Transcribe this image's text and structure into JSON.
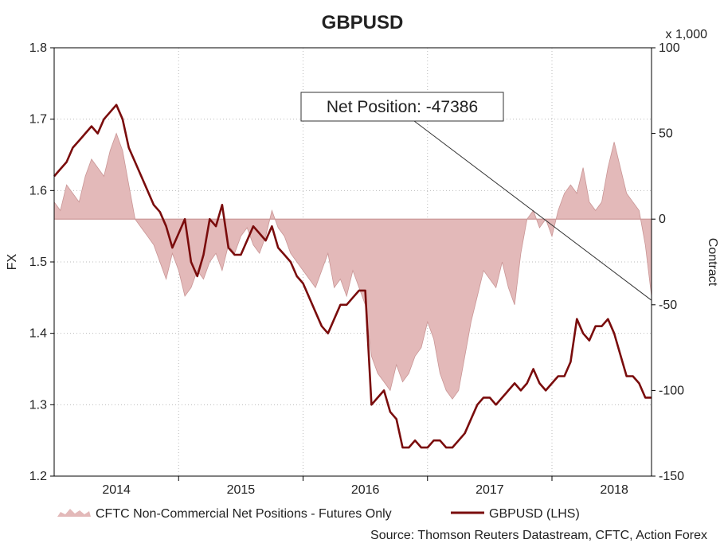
{
  "chart_data": {
    "type": "line",
    "title": "GBPUSD",
    "ylabel": "FX",
    "y2label": "Contract",
    "y2_multiplier_label": "x 1,000",
    "ylim": [
      1.2,
      1.8
    ],
    "y2lim": [
      -150,
      100
    ],
    "yticks": [
      "1.2",
      "1.3",
      "1.4",
      "1.5",
      "1.6",
      "1.7",
      "1.8"
    ],
    "y2ticks": [
      "-150",
      "-100",
      "-50",
      "0",
      "50",
      "100"
    ],
    "xlim": [
      2013.5,
      2018.3
    ],
    "xticks": [
      {
        "label": "2014",
        "x": 2014.0
      },
      {
        "label": "2015",
        "x": 2015.0
      },
      {
        "label": "2016",
        "x": 2016.0
      },
      {
        "label": "2017",
        "x": 2017.0
      },
      {
        "label": "2018",
        "x": 2018.0
      }
    ],
    "year_gridlines": [
      2014.5,
      2015.5,
      2016.5,
      2017.5
    ],
    "grid": true,
    "annotation": {
      "label": "Net Position: -47386",
      "target_x": 2018.3,
      "target_y2": -47.386
    },
    "series": [
      {
        "name": "CFTC Non-Commercial Net Positions - Futures Only",
        "type": "area",
        "axis": "right",
        "color": "#e3b9b9",
        "edge_color": "#c99595",
        "x": [
          2013.5,
          2013.55,
          2013.6,
          2013.65,
          2013.7,
          2013.75,
          2013.8,
          2013.85,
          2013.9,
          2013.95,
          2014.0,
          2014.05,
          2014.1,
          2014.15,
          2014.2,
          2014.25,
          2014.3,
          2014.35,
          2014.4,
          2014.45,
          2014.5,
          2014.55,
          2014.6,
          2014.65,
          2014.7,
          2014.75,
          2014.8,
          2014.85,
          2014.9,
          2014.95,
          2015.0,
          2015.05,
          2015.1,
          2015.15,
          2015.2,
          2015.25,
          2015.3,
          2015.35,
          2015.4,
          2015.45,
          2015.5,
          2015.55,
          2015.6,
          2015.65,
          2015.7,
          2015.75,
          2015.8,
          2015.85,
          2015.9,
          2015.95,
          2016.0,
          2016.05,
          2016.1,
          2016.15,
          2016.2,
          2016.25,
          2016.3,
          2016.35,
          2016.4,
          2016.45,
          2016.5,
          2016.55,
          2016.6,
          2016.65,
          2016.7,
          2016.75,
          2016.8,
          2016.85,
          2016.9,
          2016.95,
          2017.0,
          2017.05,
          2017.1,
          2017.15,
          2017.2,
          2017.25,
          2017.3,
          2017.35,
          2017.4,
          2017.45,
          2017.5,
          2017.55,
          2017.6,
          2017.65,
          2017.7,
          2017.75,
          2017.8,
          2017.85,
          2017.9,
          2017.95,
          2018.0,
          2018.05,
          2018.1,
          2018.15,
          2018.2,
          2018.25,
          2018.3
        ],
        "values": [
          10,
          5,
          20,
          15,
          10,
          25,
          35,
          30,
          25,
          40,
          50,
          40,
          20,
          0,
          -5,
          -10,
          -15,
          -25,
          -35,
          -20,
          -30,
          -45,
          -40,
          -30,
          -35,
          -25,
          -20,
          -30,
          -15,
          -20,
          -10,
          -5,
          -15,
          -20,
          -10,
          5,
          -5,
          -10,
          -20,
          -25,
          -30,
          -35,
          -40,
          -30,
          -20,
          -40,
          -35,
          -45,
          -30,
          -40,
          -50,
          -80,
          -90,
          -95,
          -100,
          -85,
          -95,
          -90,
          -80,
          -75,
          -60,
          -70,
          -90,
          -100,
          -105,
          -100,
          -80,
          -60,
          -45,
          -30,
          -35,
          -40,
          -25,
          -40,
          -50,
          -20,
          0,
          5,
          -5,
          0,
          -10,
          5,
          15,
          20,
          15,
          30,
          10,
          5,
          10,
          30,
          45,
          30,
          15,
          10,
          5,
          -15,
          -45
        ]
      },
      {
        "name": "GBPUSD (LHS)",
        "type": "line",
        "axis": "left",
        "color": "#7a0c0c",
        "x": [
          2013.5,
          2013.55,
          2013.6,
          2013.65,
          2013.7,
          2013.75,
          2013.8,
          2013.85,
          2013.9,
          2013.95,
          2014.0,
          2014.05,
          2014.1,
          2014.15,
          2014.2,
          2014.25,
          2014.3,
          2014.35,
          2014.4,
          2014.45,
          2014.5,
          2014.55,
          2014.6,
          2014.65,
          2014.7,
          2014.75,
          2014.8,
          2014.85,
          2014.9,
          2014.95,
          2015.0,
          2015.05,
          2015.1,
          2015.15,
          2015.2,
          2015.25,
          2015.3,
          2015.35,
          2015.4,
          2015.45,
          2015.5,
          2015.55,
          2015.6,
          2015.65,
          2015.7,
          2015.75,
          2015.8,
          2015.85,
          2015.9,
          2015.95,
          2016.0,
          2016.05,
          2016.1,
          2016.15,
          2016.2,
          2016.25,
          2016.3,
          2016.35,
          2016.4,
          2016.45,
          2016.5,
          2016.55,
          2016.6,
          2016.65,
          2016.7,
          2016.75,
          2016.8,
          2016.85,
          2016.9,
          2016.95,
          2017.0,
          2017.05,
          2017.1,
          2017.15,
          2017.2,
          2017.25,
          2017.3,
          2017.35,
          2017.4,
          2017.45,
          2017.5,
          2017.55,
          2017.6,
          2017.65,
          2017.7,
          2017.75,
          2017.8,
          2017.85,
          2017.9,
          2017.95,
          2018.0,
          2018.05,
          2018.1,
          2018.15,
          2018.2,
          2018.25,
          2018.3
        ],
        "values": [
          1.62,
          1.63,
          1.64,
          1.66,
          1.67,
          1.68,
          1.69,
          1.68,
          1.7,
          1.71,
          1.72,
          1.7,
          1.66,
          1.64,
          1.62,
          1.6,
          1.58,
          1.57,
          1.55,
          1.52,
          1.54,
          1.56,
          1.5,
          1.48,
          1.51,
          1.56,
          1.55,
          1.58,
          1.52,
          1.51,
          1.51,
          1.53,
          1.55,
          1.54,
          1.53,
          1.55,
          1.52,
          1.51,
          1.5,
          1.48,
          1.47,
          1.45,
          1.43,
          1.41,
          1.4,
          1.42,
          1.44,
          1.44,
          1.45,
          1.46,
          1.46,
          1.3,
          1.31,
          1.32,
          1.29,
          1.28,
          1.24,
          1.24,
          1.25,
          1.24,
          1.24,
          1.25,
          1.25,
          1.24,
          1.24,
          1.25,
          1.26,
          1.28,
          1.3,
          1.31,
          1.31,
          1.3,
          1.31,
          1.32,
          1.33,
          1.32,
          1.33,
          1.35,
          1.33,
          1.32,
          1.33,
          1.34,
          1.34,
          1.36,
          1.42,
          1.4,
          1.39,
          1.41,
          1.41,
          1.42,
          1.4,
          1.37,
          1.34,
          1.34,
          1.33,
          1.31,
          1.31
        ]
      }
    ],
    "legend_position": "bottom",
    "source": "Source: Thomson Reuters Datastream, CFTC, Action Forex"
  }
}
